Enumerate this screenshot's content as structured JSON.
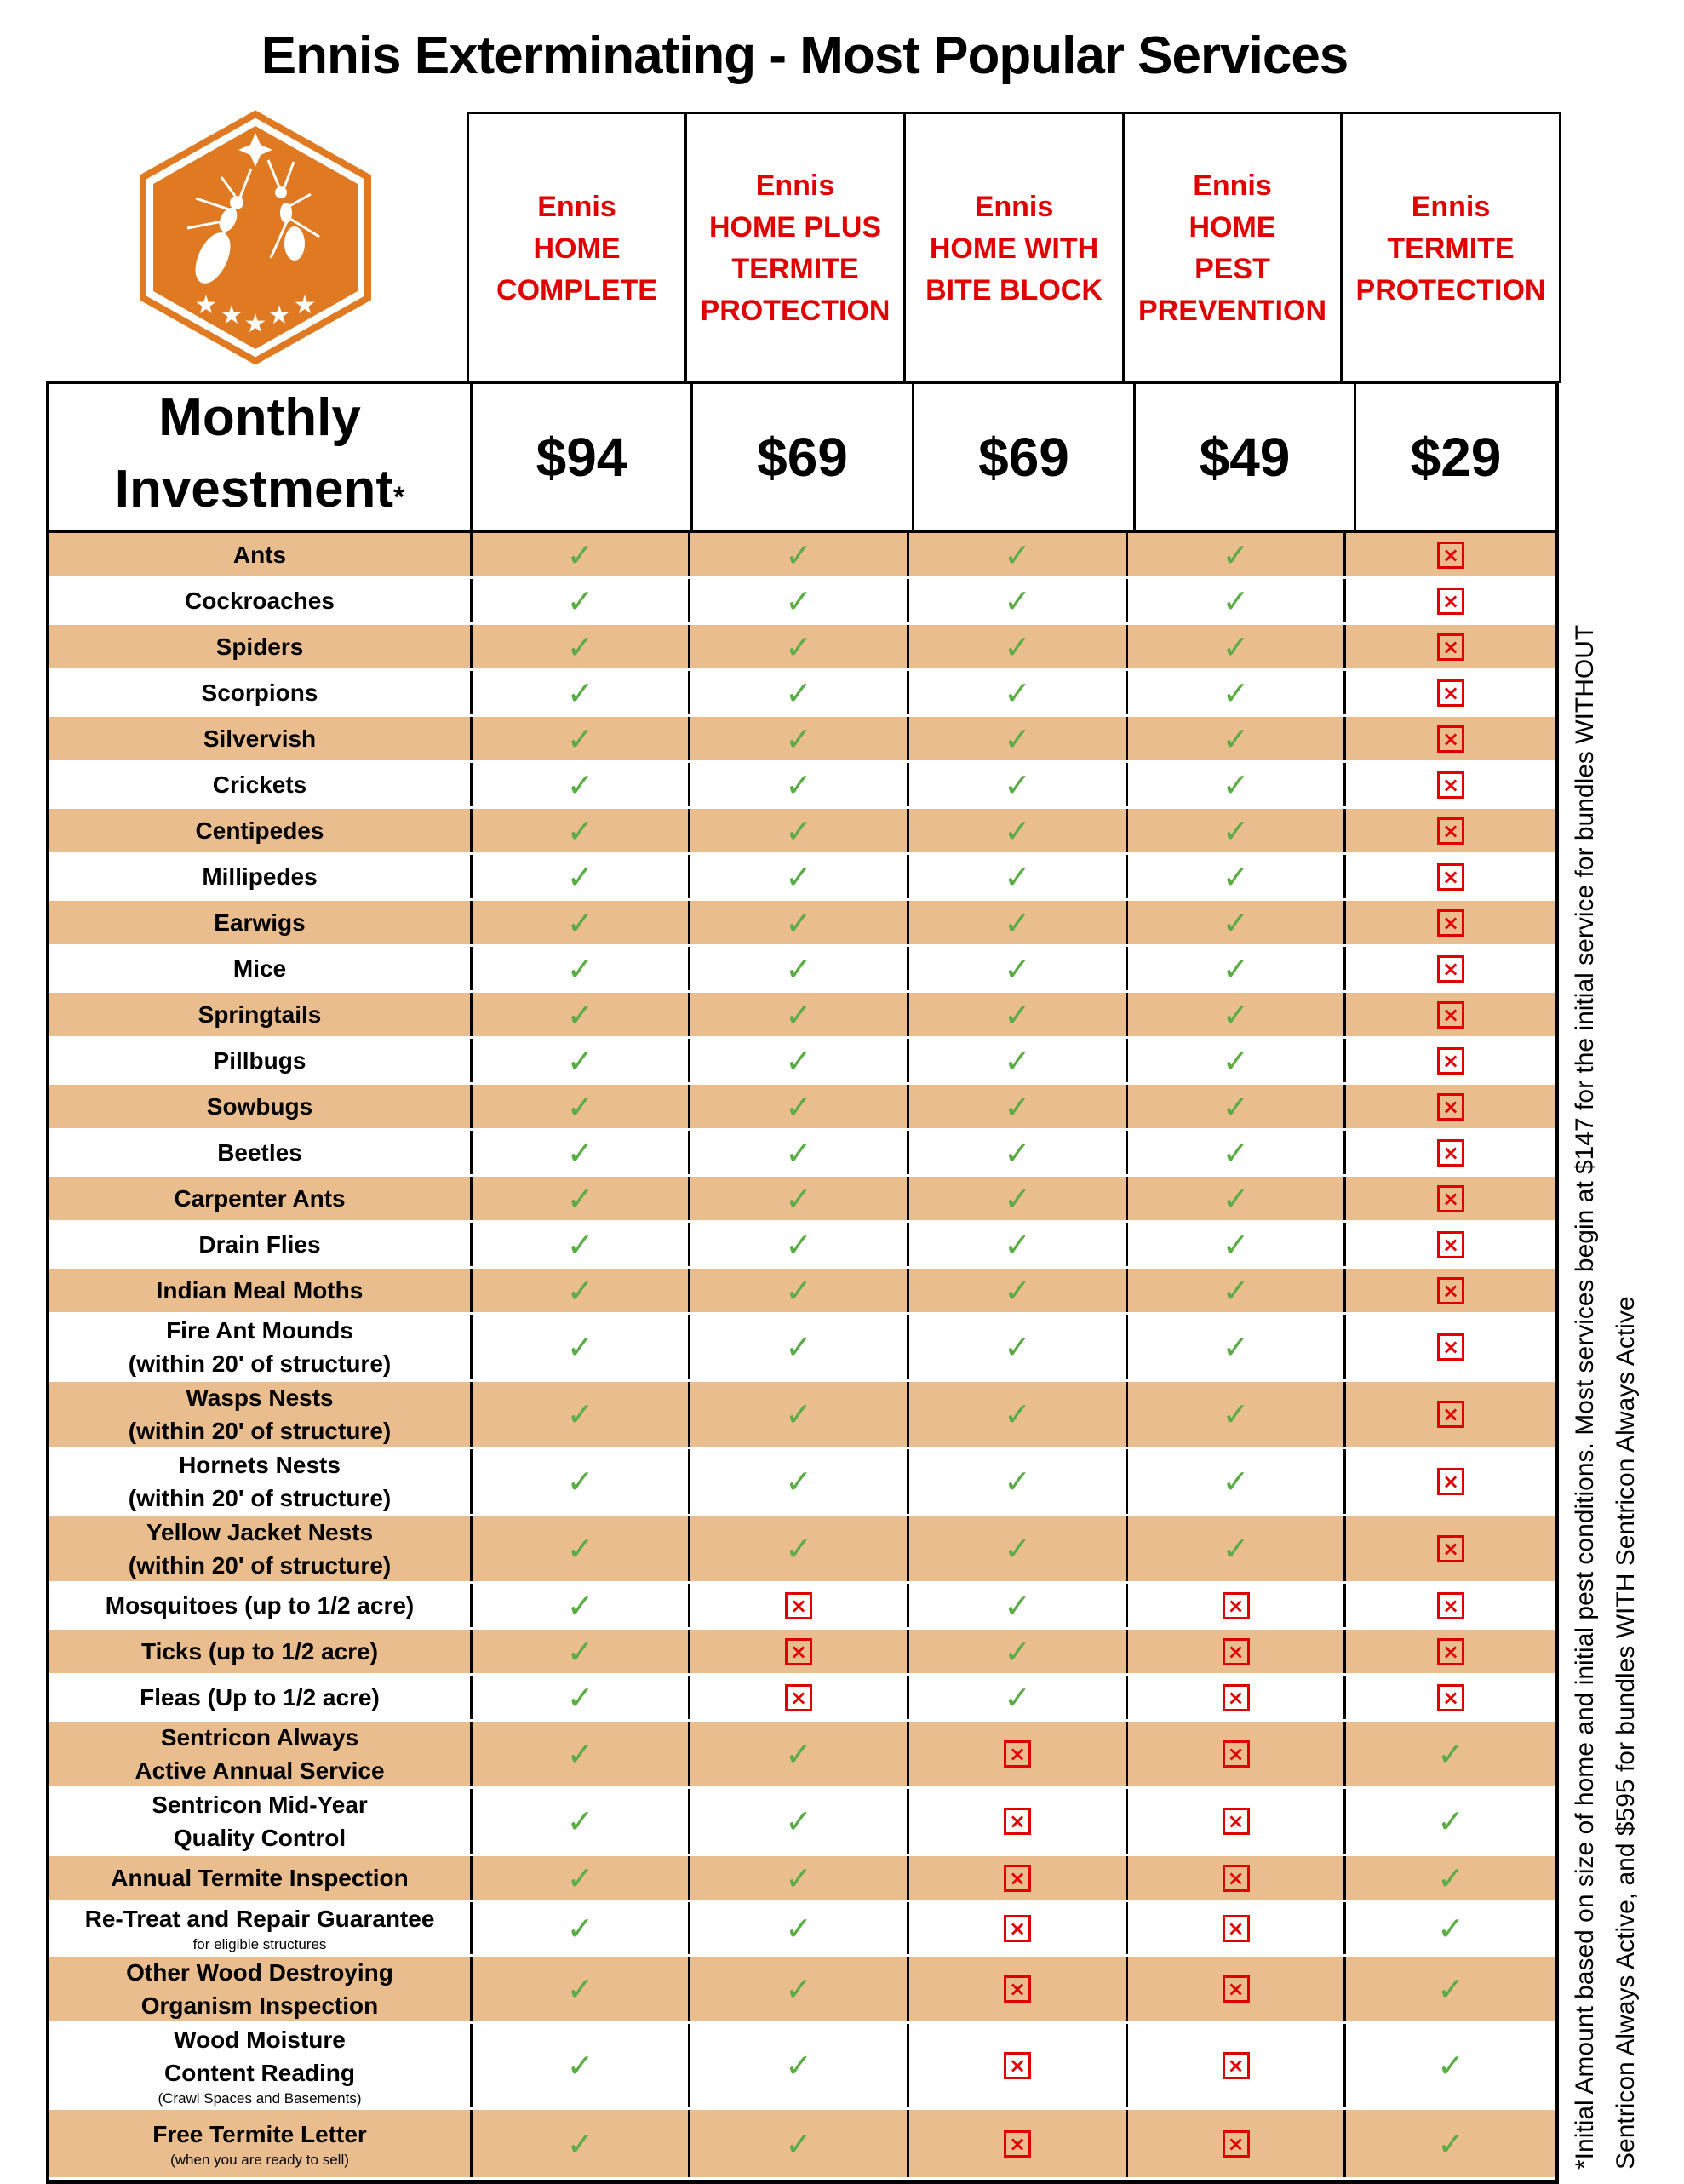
{
  "title": "Ennis Exterminating - Most Popular Services",
  "logo": {
    "icon": "orange-hexagon-ants-logo",
    "color": "#e07a22"
  },
  "plans": [
    {
      "name_lines": [
        "Ennis",
        "HOME",
        "COMPLETE"
      ],
      "price": "$94"
    },
    {
      "name_lines": [
        "Ennis",
        "HOME PLUS",
        "TERMITE",
        "PROTECTION"
      ],
      "price": "$69"
    },
    {
      "name_lines": [
        "Ennis",
        "HOME WITH",
        "BITE BLOCK"
      ],
      "price": "$69"
    },
    {
      "name_lines": [
        "Ennis",
        "HOME",
        "PEST",
        "PREVENTION"
      ],
      "price": "$49"
    },
    {
      "name_lines": [
        "Ennis",
        "TERMITE",
        "PROTECTION"
      ],
      "price": "$29"
    }
  ],
  "monthly_label": {
    "line1": "Monthly",
    "line2": "Investment",
    "asterisk": "*"
  },
  "colors": {
    "plan_name": "#e00000",
    "shade": "#eabd8f",
    "check": "#5aac44",
    "cross": "#e00000"
  },
  "icons": {
    "included": "check-icon",
    "excluded": "x-box-icon"
  },
  "rows": [
    {
      "label": [
        "Ants"
      ],
      "marks": [
        "y",
        "y",
        "y",
        "y",
        "n"
      ]
    },
    {
      "label": [
        "Cockroaches"
      ],
      "marks": [
        "y",
        "y",
        "y",
        "y",
        "n"
      ]
    },
    {
      "label": [
        "Spiders"
      ],
      "marks": [
        "y",
        "y",
        "y",
        "y",
        "n"
      ]
    },
    {
      "label": [
        "Scorpions"
      ],
      "marks": [
        "y",
        "y",
        "y",
        "y",
        "n"
      ]
    },
    {
      "label": [
        "Silvervish"
      ],
      "marks": [
        "y",
        "y",
        "y",
        "y",
        "n"
      ]
    },
    {
      "label": [
        "Crickets"
      ],
      "marks": [
        "y",
        "y",
        "y",
        "y",
        "n"
      ]
    },
    {
      "label": [
        "Centipedes"
      ],
      "marks": [
        "y",
        "y",
        "y",
        "y",
        "n"
      ]
    },
    {
      "label": [
        "Millipedes"
      ],
      "marks": [
        "y",
        "y",
        "y",
        "y",
        "n"
      ]
    },
    {
      "label": [
        "Earwigs"
      ],
      "marks": [
        "y",
        "y",
        "y",
        "y",
        "n"
      ]
    },
    {
      "label": [
        "Mice"
      ],
      "marks": [
        "y",
        "y",
        "y",
        "y",
        "n"
      ]
    },
    {
      "label": [
        "Springtails"
      ],
      "marks": [
        "y",
        "y",
        "y",
        "y",
        "n"
      ]
    },
    {
      "label": [
        "Pillbugs"
      ],
      "marks": [
        "y",
        "y",
        "y",
        "y",
        "n"
      ]
    },
    {
      "label": [
        "Sowbugs"
      ],
      "marks": [
        "y",
        "y",
        "y",
        "y",
        "n"
      ]
    },
    {
      "label": [
        "Beetles"
      ],
      "marks": [
        "y",
        "y",
        "y",
        "y",
        "n"
      ]
    },
    {
      "label": [
        "Carpenter Ants"
      ],
      "marks": [
        "y",
        "y",
        "y",
        "y",
        "n"
      ]
    },
    {
      "label": [
        "Drain Flies"
      ],
      "marks": [
        "y",
        "y",
        "y",
        "y",
        "n"
      ]
    },
    {
      "label": [
        "Indian Meal Moths"
      ],
      "marks": [
        "y",
        "y",
        "y",
        "y",
        "n"
      ]
    },
    {
      "label": [
        "Fire Ant Mounds",
        "(within 20' of structure)"
      ],
      "marks": [
        "y",
        "y",
        "y",
        "y",
        "n"
      ]
    },
    {
      "label": [
        "Wasps Nests",
        "(within 20' of structure)"
      ],
      "marks": [
        "y",
        "y",
        "y",
        "y",
        "n"
      ]
    },
    {
      "label": [
        "Hornets Nests",
        "(within 20' of structure)"
      ],
      "marks": [
        "y",
        "y",
        "y",
        "y",
        "n"
      ]
    },
    {
      "label": [
        "Yellow Jacket Nests",
        "(within 20' of structure)"
      ],
      "marks": [
        "y",
        "y",
        "y",
        "y",
        "n"
      ]
    },
    {
      "label": [
        "Mosquitoes (up to 1/2 acre)"
      ],
      "marks": [
        "y",
        "n",
        "y",
        "n",
        "n"
      ]
    },
    {
      "label": [
        "Ticks (up to 1/2 acre)"
      ],
      "marks": [
        "y",
        "n",
        "y",
        "n",
        "n"
      ]
    },
    {
      "label": [
        "Fleas (Up to 1/2 acre)"
      ],
      "marks": [
        "y",
        "n",
        "y",
        "n",
        "n"
      ]
    },
    {
      "label": [
        "Sentricon Always",
        "Active Annual Service"
      ],
      "marks": [
        "y",
        "y",
        "n",
        "n",
        "y"
      ]
    },
    {
      "label": [
        "Sentricon Mid-Year",
        "Quality Control"
      ],
      "marks": [
        "y",
        "y",
        "n",
        "n",
        "y"
      ]
    },
    {
      "label": [
        "Annual Termite Inspection"
      ],
      "marks": [
        "y",
        "y",
        "n",
        "n",
        "y"
      ]
    },
    {
      "label": [
        "Re-Treat and Repair Guarantee"
      ],
      "note": "for eligible structures",
      "marks": [
        "y",
        "y",
        "n",
        "n",
        "y"
      ]
    },
    {
      "label": [
        "Other Wood Destroying",
        "Organism Inspection"
      ],
      "marks": [
        "y",
        "y",
        "n",
        "n",
        "y"
      ]
    },
    {
      "label": [
        "Wood Moisture",
        "Content Reading"
      ],
      "note": "(Crawl Spaces and Basements)",
      "marks": [
        "y",
        "y",
        "n",
        "n",
        "y"
      ]
    },
    {
      "label": [
        "Free Termite Letter"
      ],
      "note": "(when you are ready to sell)",
      "marks": [
        "y",
        "y",
        "n",
        "n",
        "y"
      ]
    }
  ],
  "footnote": {
    "line1": "*Initial Amount based on size of home and  initial pest conditions.  Most services begin at $147 for the initial service for bundles WITHOUT",
    "line2": "Sentricon Always Active, and $595 for bundles WITH Sentricon Always Active"
  }
}
